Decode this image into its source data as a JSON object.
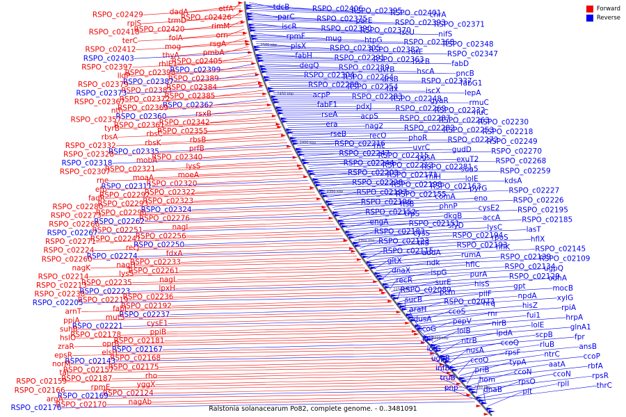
{
  "caption": "Ralstonia solanacearum Po82, complete genome. - 0..3481091",
  "legend": [
    {
      "label": "Forward",
      "color": "#ee0000"
    },
    {
      "label": "Reverse",
      "color": "#0000ee"
    }
  ],
  "colors": {
    "forward": "#ee0000",
    "reverse": "#0000ee",
    "backbone": "#777777"
  },
  "ticks": [
    "2150 kbp",
    "2200 kbp",
    "2250 kbp",
    "2300 kbp",
    "2350 kbp",
    "2400 kbp",
    "2450 kbp",
    "2500 kbp"
  ],
  "left_labels": [
    "etfA",
    "dadA",
    "RSPO_c02429",
    "RSPO_c02426",
    "trmD",
    "rplS",
    "rimM",
    "RSPO_c02420",
    "RSPO_c02418",
    "orn",
    "folA",
    "terC",
    "rsgA",
    "mog",
    "RSPO_c02412",
    "pmbA",
    "thyA",
    "RSPO_c02403",
    "RSPO_c02405",
    "rhlE1",
    "RSPO_c02397",
    "RSPO_c02399",
    "RSPO_c02398",
    "lldP",
    "RSPO_c02389",
    "RSPO_c02387",
    "RSPO_c02379",
    "RSPO_c02384",
    "RSPO_c02383",
    "RSPO_c02373",
    "RSPO_c02385",
    "RSPO_c02372",
    "RSPO_c02367",
    "RSPO_c02362",
    "RSPO_c02369",
    "nth",
    "rsxB",
    "RSPO_c02360",
    "RSPO_c02357",
    "RSPO_c02342",
    "RSPO_c02361",
    "tyrB",
    "RSPO_c02355",
    "rbsC",
    "rbsA",
    "rbsB",
    "rbsK",
    "RSPO_c02332",
    "prfB",
    "RSPO_c02335",
    "RSPO_c02328",
    "RSPO_c02340",
    "mobA",
    "RSPO_c02318",
    "lysS",
    "RSPO_c02321",
    "RSPO_c02307",
    "moeA",
    "moaA",
    "rne",
    "RSPO_c02320",
    "RSPO_c02311",
    "efp",
    "RSPO_c02322",
    "RSPO_c02292",
    "fadR",
    "RSPO_c02323",
    "RSPO_c02293",
    "RSPO_c02280",
    "RSPO_c02324",
    "RSPO_c02296",
    "RSPO_c02273",
    "RSPO_c02276",
    "RSPO_c02262",
    "RSPO_c02266",
    "nagI",
    "RSPO_c02251",
    "RSPO_c02267",
    "RSPO_c02256",
    "RSPO_c02241",
    "RSPO_c02271",
    "RSPO_c02250",
    "recJ",
    "RSPO_c02224",
    "fdxA",
    "RSPO_c02274",
    "RSPO_c02260",
    "RSPO_c02233",
    "nagH",
    "nagK",
    "RSPO_c02261",
    "lysS",
    "RSPO_c02214",
    "nagL",
    "RSPO_c02235",
    "RSPO_c02213",
    "lpxH",
    "RSPO_c02223",
    "RSPO_c02238",
    "RSPO_c02236",
    "RSPO_c02219",
    "RSPO_c02205",
    "RSPO_c02192",
    "fabI",
    "arnT",
    "RSPO_c02237",
    "mutS",
    "ppiA",
    "cysE1",
    "RSPO_c02221",
    "suhB",
    "ppiB",
    "RSPO_c02178",
    "hslO",
    "RSPO_c02181",
    "oprB",
    "zraR",
    "RSPO_c02167",
    "elsH",
    "epsR",
    "RSPO_c02168",
    "RSPO_c02143",
    "norM",
    "RSPO_c02175",
    "RSPO_c02157",
    "tal",
    "rho",
    "RSPO_c02187",
    "RSPO_c02159",
    "yggX",
    "rpmE",
    "RSPO_c02166",
    "RSPO_c02124",
    "RSPO_c02169",
    "argA",
    "nagAb",
    "RSPO_c02170",
    "RSPO_c02176"
  ],
  "right_labels": [
    "tdcB",
    "RSPO_c02406",
    "RSPO_c02395",
    "RSPO_c02401",
    "chrA",
    "parC",
    "RSPO_c02375",
    "parE",
    "RSPO_c02393",
    "RSPO_c02371",
    "iscR",
    "RSPO_c02390",
    "RSPO_c02370",
    "iscU",
    "nifS",
    "rpmF",
    "mug",
    "htpG",
    "RSPO_c02368",
    "RSPO_c02348",
    "plsX",
    "RSPO_c02305",
    "RSPO_c02382",
    "rutE",
    "RSPO_c02347",
    "fabH",
    "RSPO_c02291",
    "RSPO_c02363",
    "hscB",
    "fabD",
    "degQ",
    "RSPO_c02289",
    "uvrB",
    "hscA",
    "pncB",
    "RSPO_c02304",
    "RSPO_c02264",
    "arsB",
    "RSPO_c02337",
    "fabG1",
    "RSPO_c02288",
    "RSPO_c02254",
    "fdx",
    "iscX",
    "lepA",
    "acpP",
    "RSPO_c02283",
    "RSPO_c02248",
    "gyaR",
    "rmuC",
    "fabF1",
    "pdxJ",
    "RSPO_c02269",
    "RSPO_c02232",
    "rluC",
    "rseA",
    "acpS",
    "RSPO_c02287",
    "RSPO_c02263",
    "RSPO_c02230",
    "era",
    "nag2",
    "RSPO_c02282",
    "RSPO_c02253",
    "RSPO_c02218",
    "rseB",
    "recO",
    "phoR",
    "RSPO_c02272",
    "RSPO_c02249",
    "RSPO_c02216",
    "rnc",
    "uvrC",
    "gudD",
    "RSPO_c02270",
    "RSPO_c02247",
    "RSPO_c02215",
    "pgsA",
    "exuT2",
    "RSPO_c02268",
    "RSPO_c02244",
    "RSPO_c02212",
    "RSPO_c02281",
    "sua5",
    "RSPO_c02259",
    "RSPO_c02203",
    "RSPO_c02171",
    "rhlH",
    "lolE",
    "kdsA",
    "RSPO_c02228",
    "RSPO_c02198",
    "RSPO_c02163",
    "pyrG",
    "RSPO_c02227",
    "RSPO_c02197",
    "RSPO_c02155",
    "comA",
    "eno",
    "RSPO_c02226",
    "RSPO_c02196",
    "ftsB",
    "phnP",
    "cysE2",
    "RSPO_c02195",
    "RSPO_c02152",
    "trpS",
    "dkgB",
    "accA",
    "RSPO_c02185",
    "engA",
    "RSPO_c02151",
    "slyD",
    "lysC",
    "lasT",
    "RSPO_c02183",
    "cysS",
    "RSPO_c02194",
    "rpoS",
    "hflX",
    "RSPO_c02123",
    "tilS",
    "RSPO_c02193",
    "hflK",
    "RSPO_c02145",
    "RSPO_c02115",
    "addA",
    "rumA",
    "RSPO_c02139",
    "RSPO_c02109",
    "gltX",
    "ndk",
    "hflC",
    "RSPO_c02134",
    "ugpQ",
    "dnaX",
    "ispG",
    "purA",
    "RSPO_c02129",
    "odhA",
    "recR",
    "surE",
    "hisS",
    "gpt",
    "mocB",
    "RSPO_c02089",
    "pcm",
    "pilF",
    "npdA",
    "xylG",
    "sucB",
    "RSPO_c02073",
    "hrq",
    "hisZ",
    "rpiA",
    "araH",
    "ccoS",
    "rnr",
    "fui1",
    "hrpA",
    "dusA",
    "pepV",
    "nirB",
    "lolE",
    "glnA1",
    "ccoG",
    "lolB",
    "lpdA",
    "scpB",
    "fpr",
    "lolI",
    "ntrB",
    "ccoQ",
    "rluB",
    "ansB",
    "lolG",
    "nusA",
    "rpsF",
    "ntrC",
    "ccoP",
    "ugpB",
    "ccoO",
    "typA",
    "aatA",
    "rbfA",
    "infB",
    "priB",
    "ccoN",
    "ccoN",
    "rpsR",
    "truB",
    "hom",
    "rpsO",
    "rplI",
    "thrC",
    "pnp",
    "dnaB",
    "pit"
  ]
}
